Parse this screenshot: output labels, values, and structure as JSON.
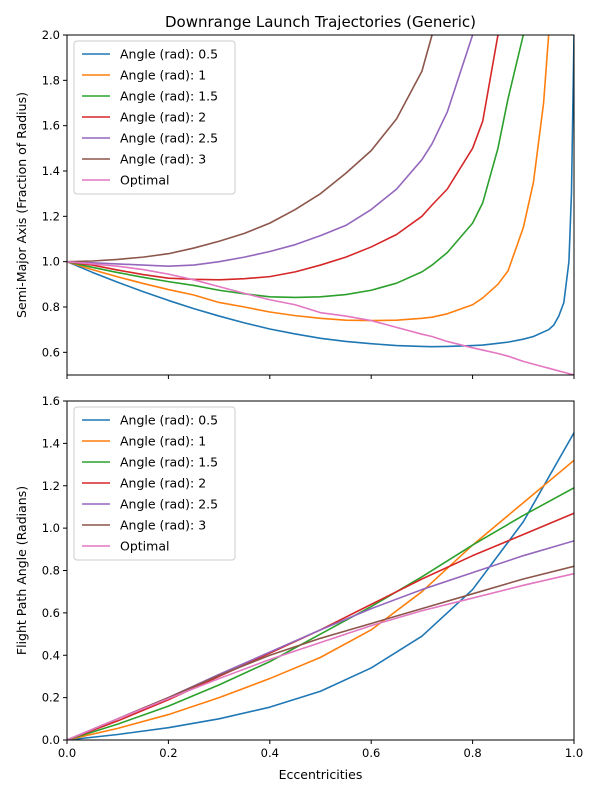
{
  "chart_data": [
    {
      "type": "line",
      "title": "Downrange Launch Trajectories (Generic)",
      "xlabel": "",
      "ylabel": "Semi-Major Axis (Fraction of Radius)",
      "xlim": [
        0,
        1
      ],
      "ylim": [
        0.5,
        2.0
      ],
      "xticks": [
        0.0,
        0.2,
        0.4,
        0.6,
        0.8,
        1.0
      ],
      "xtick_labels": [
        "",
        "",
        "",
        "",
        "",
        ""
      ],
      "yticks": [
        0.6,
        0.8,
        1.0,
        1.2,
        1.4,
        1.6,
        1.8,
        2.0
      ],
      "ytick_labels": [
        "0.6",
        "0.8",
        "1.0",
        "1.2",
        "1.4",
        "1.6",
        "1.8",
        "2.0"
      ],
      "grid": false,
      "legend_position": "upper-left",
      "x": [
        0.0,
        0.05,
        0.1,
        0.15,
        0.2,
        0.25,
        0.3,
        0.35,
        0.4,
        0.45,
        0.5,
        0.55,
        0.6,
        0.65,
        0.7,
        0.72,
        0.75,
        0.8,
        0.82,
        0.85,
        0.87,
        0.9,
        0.92,
        0.94,
        0.95,
        0.96,
        0.97,
        0.98,
        0.99,
        0.995,
        1.0
      ],
      "series": [
        {
          "name": "Angle (rad): 0.5",
          "color": "#1f77b4",
          "values": [
            1.0,
            0.953,
            0.909,
            0.868,
            0.829,
            0.793,
            0.76,
            0.73,
            0.703,
            0.681,
            0.662,
            0.648,
            0.638,
            0.63,
            0.626,
            0.625,
            0.626,
            0.63,
            0.632,
            0.64,
            0.645,
            0.658,
            0.67,
            0.69,
            0.7,
            0.72,
            0.76,
            0.82,
            1.0,
            1.3,
            2.0
          ]
        },
        {
          "name": "Angle (rad): 1",
          "color": "#ff7f0e",
          "values": [
            1.0,
            0.965,
            0.933,
            0.904,
            0.877,
            0.853,
            0.82,
            0.8,
            0.778,
            0.762,
            0.75,
            0.742,
            0.74,
            0.742,
            0.75,
            0.755,
            0.77,
            0.81,
            0.84,
            0.9,
            0.96,
            1.15,
            1.35,
            1.7,
            2.0,
            null,
            null,
            null,
            null,
            null,
            null
          ]
        },
        {
          "name": "Angle (rad): 1.5",
          "color": "#2ca02c",
          "values": [
            1.0,
            0.975,
            0.952,
            0.931,
            0.912,
            0.895,
            0.874,
            0.858,
            0.845,
            0.842,
            0.845,
            0.855,
            0.874,
            0.905,
            0.955,
            0.985,
            1.04,
            1.17,
            1.26,
            1.5,
            1.72,
            2.0,
            null,
            null,
            null,
            null,
            null,
            null,
            null,
            null,
            null
          ]
        },
        {
          "name": "Angle (rad): 2",
          "color": "#d62728",
          "values": [
            1.0,
            0.985,
            0.963,
            0.943,
            0.927,
            0.922,
            0.92,
            0.925,
            0.934,
            0.955,
            0.985,
            1.02,
            1.065,
            1.12,
            1.2,
            1.25,
            1.32,
            1.5,
            1.62,
            2.0,
            null,
            null,
            null,
            null,
            null,
            null,
            null,
            null,
            null,
            null,
            null
          ]
        },
        {
          "name": "Angle (rad): 2.5",
          "color": "#9467bd",
          "values": [
            1.0,
            0.995,
            0.99,
            0.985,
            0.98,
            0.985,
            1.0,
            1.02,
            1.045,
            1.075,
            1.115,
            1.16,
            1.23,
            1.32,
            1.45,
            1.52,
            1.66,
            2.0,
            null,
            null,
            null,
            null,
            null,
            null,
            null,
            null,
            null,
            null,
            null,
            null,
            null
          ]
        },
        {
          "name": "Angle (rad): 3",
          "color": "#8c564b",
          "values": [
            1.0,
            1.003,
            1.01,
            1.02,
            1.035,
            1.06,
            1.09,
            1.125,
            1.17,
            1.23,
            1.3,
            1.39,
            1.49,
            1.63,
            1.84,
            2.0,
            null,
            null,
            null,
            null,
            null,
            null,
            null,
            null,
            null,
            null,
            null,
            null,
            null,
            null,
            null
          ]
        },
        {
          "name": "Optimal",
          "color": "#e377c2",
          "values": [
            1.0,
            0.99,
            0.98,
            0.965,
            0.945,
            0.92,
            0.89,
            0.86,
            0.832,
            0.81,
            0.775,
            0.76,
            0.74,
            0.71,
            0.68,
            0.67,
            0.648,
            0.62,
            0.61,
            0.595,
            0.583,
            0.56,
            0.548,
            0.536,
            0.53,
            0.524,
            0.518,
            0.512,
            0.506,
            0.503,
            0.5
          ]
        }
      ]
    },
    {
      "type": "line",
      "title": "",
      "xlabel": "Eccentricities",
      "ylabel": "Flight Path Angle (Radians)",
      "xlim": [
        0,
        1
      ],
      "ylim": [
        0,
        1.6
      ],
      "xticks": [
        0.0,
        0.2,
        0.4,
        0.6,
        0.8,
        1.0
      ],
      "xtick_labels": [
        "0.0",
        "0.2",
        "0.4",
        "0.6",
        "0.8",
        "1.0"
      ],
      "yticks": [
        0.0,
        0.2,
        0.4,
        0.6,
        0.8,
        1.0,
        1.2,
        1.4,
        1.6
      ],
      "ytick_labels": [
        "0.0",
        "0.2",
        "0.4",
        "0.6",
        "0.8",
        "1.0",
        "1.2",
        "1.4",
        "1.6"
      ],
      "grid": false,
      "legend_position": "upper-left",
      "x": [
        0.0,
        0.1,
        0.2,
        0.3,
        0.4,
        0.5,
        0.6,
        0.7,
        0.8,
        0.9,
        1.0
      ],
      "series": [
        {
          "name": "Angle (rad): 0.5",
          "color": "#1f77b4",
          "values": [
            0.0,
            0.026,
            0.058,
            0.1,
            0.155,
            0.23,
            0.34,
            0.49,
            0.71,
            1.03,
            1.45
          ]
        },
        {
          "name": "Angle (rad): 1",
          "color": "#ff7f0e",
          "values": [
            0.0,
            0.055,
            0.12,
            0.2,
            0.29,
            0.39,
            0.52,
            0.7,
            0.92,
            1.12,
            1.32
          ]
        },
        {
          "name": "Angle (rad): 1.5",
          "color": "#2ca02c",
          "values": [
            0.0,
            0.075,
            0.16,
            0.26,
            0.37,
            0.5,
            0.63,
            0.77,
            0.92,
            1.06,
            1.19
          ]
        },
        {
          "name": "Angle (rad): 2",
          "color": "#d62728",
          "values": [
            0.0,
            0.09,
            0.19,
            0.3,
            0.41,
            0.52,
            0.64,
            0.76,
            0.87,
            0.97,
            1.07
          ]
        },
        {
          "name": "Angle (rad): 2.5",
          "color": "#9467bd",
          "values": [
            0.0,
            0.1,
            0.2,
            0.31,
            0.415,
            0.52,
            0.62,
            0.71,
            0.79,
            0.87,
            0.94
          ]
        },
        {
          "name": "Angle (rad): 3",
          "color": "#8c564b",
          "values": [
            0.0,
            0.1,
            0.2,
            0.305,
            0.4,
            0.48,
            0.55,
            0.62,
            0.69,
            0.76,
            0.82
          ]
        },
        {
          "name": "Optimal",
          "color": "#e377c2",
          "values": [
            0.0,
            0.1,
            0.195,
            0.29,
            0.38,
            0.46,
            0.54,
            0.61,
            0.67,
            0.73,
            0.785
          ]
        }
      ]
    }
  ]
}
